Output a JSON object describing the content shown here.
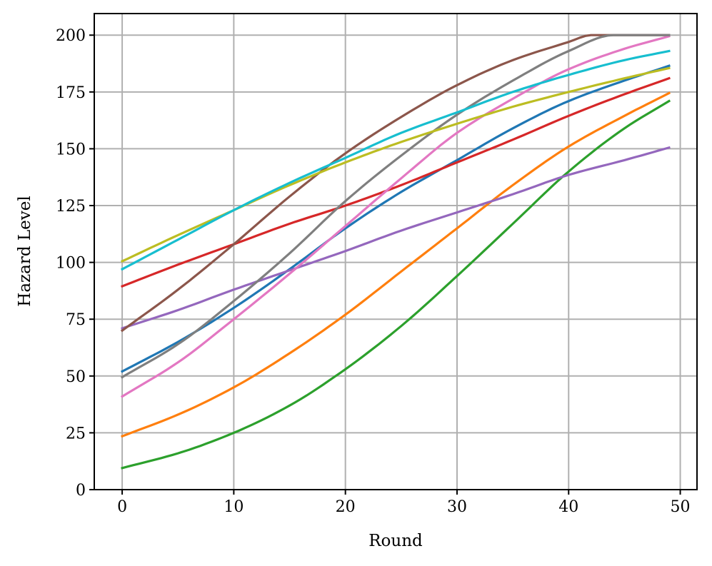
{
  "chart_data": {
    "type": "line",
    "xlabel": "Round",
    "ylabel": "Hazard Level",
    "xlim": [
      -2.5,
      51.5
    ],
    "ylim": [
      0,
      209.5
    ],
    "xticks": [
      0,
      10,
      20,
      30,
      40,
      50
    ],
    "yticks": [
      0,
      25,
      50,
      75,
      100,
      125,
      150,
      175,
      200
    ],
    "grid": true,
    "legend": "none",
    "x_range": [
      0,
      49
    ],
    "series": [
      {
        "color": "#1f77b4",
        "x": [
          0,
          5,
          10,
          15,
          20,
          25,
          30,
          35,
          40,
          45,
          49
        ],
        "values": [
          52,
          65,
          80,
          97,
          115,
          131,
          145,
          159,
          171,
          180,
          186.5
        ]
      },
      {
        "color": "#ff7f0e",
        "x": [
          0,
          5,
          10,
          15,
          20,
          25,
          30,
          35,
          40,
          45,
          49
        ],
        "values": [
          23.5,
          33,
          45,
          60,
          77,
          96,
          115,
          134,
          151,
          164.5,
          174.5
        ]
      },
      {
        "color": "#2ca02c",
        "x": [
          0,
          5,
          10,
          15,
          20,
          25,
          30,
          35,
          40,
          45,
          49
        ],
        "values": [
          9.5,
          16,
          25,
          37,
          53,
          72,
          94,
          117,
          140,
          159,
          171
        ]
      },
      {
        "color": "#d62728",
        "x": [
          0,
          5,
          10,
          15,
          20,
          25,
          30,
          35,
          40,
          45,
          49
        ],
        "values": [
          89.5,
          99,
          108,
          117,
          125,
          134,
          144,
          154,
          164.5,
          174,
          181
        ]
      },
      {
        "color": "#9467bd",
        "x": [
          0,
          5,
          10,
          15,
          20,
          25,
          30,
          35,
          40,
          45,
          49
        ],
        "values": [
          71,
          79,
          88,
          96.5,
          105,
          114,
          122,
          130,
          138.5,
          145,
          150.5
        ]
      },
      {
        "color": "#8c564b",
        "x": [
          0,
          5,
          10,
          15,
          20,
          25,
          30,
          35,
          40,
          42,
          45,
          49
        ],
        "values": [
          70,
          88,
          108,
          129,
          148,
          164,
          178,
          189,
          197,
          200,
          200,
          200
        ]
      },
      {
        "color": "#e377c2",
        "x": [
          0,
          5,
          10,
          15,
          20,
          25,
          30,
          35,
          40,
          45,
          49
        ],
        "values": [
          41,
          56,
          75,
          95,
          116,
          137,
          157,
          172,
          185,
          194,
          199.5
        ]
      },
      {
        "color": "#7f7f7f",
        "x": [
          0,
          5,
          10,
          15,
          20,
          25,
          30,
          35,
          40,
          44,
          45,
          49
        ],
        "values": [
          49.5,
          64,
          83,
          104,
          127,
          147,
          165,
          180,
          193,
          200,
          200,
          200
        ]
      },
      {
        "color": "#bcbd22",
        "x": [
          0,
          5,
          10,
          15,
          20,
          25,
          30,
          35,
          40,
          45,
          49
        ],
        "values": [
          100.5,
          112,
          123,
          134,
          144,
          153,
          161,
          168.5,
          175,
          181,
          185.5
        ]
      },
      {
        "color": "#17becf",
        "x": [
          0,
          5,
          10,
          15,
          20,
          25,
          30,
          35,
          40,
          45,
          49
        ],
        "values": [
          97,
          110,
          123,
          135,
          146,
          157,
          166,
          175,
          182.5,
          189,
          193
        ]
      }
    ]
  }
}
